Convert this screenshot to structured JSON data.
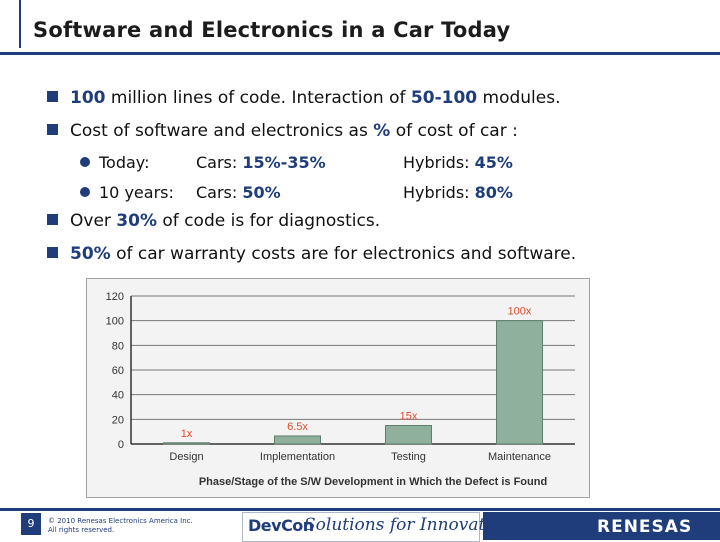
{
  "slide": {
    "title": "Software and Electronics in a Car Today",
    "bullets": [
      {
        "pre": "",
        "num": "100",
        "post": " million lines of code. Interaction of ",
        "num2": "50-100",
        "post2": " modules."
      },
      {
        "pre": "Cost of software and electronics as ",
        "num": "%",
        "post": " of cost of car :"
      },
      {
        "pre": "Over ",
        "num": "30%",
        "post": " of code is for diagnostics."
      },
      {
        "pre": "",
        "num": "50%",
        "post": " of car warranty costs are for electronics and software."
      }
    ],
    "sub_bullets": [
      {
        "label": "Today:",
        "cars_label": "Cars:",
        "cars_value": "15%-35%",
        "hybrids_label": "Hybrids:",
        "hybrids_value": "45%"
      },
      {
        "label": "10 years:",
        "cars_label": "Cars:",
        "cars_value": "50%",
        "hybrids_label": "Hybrids:",
        "hybrids_value": "80%"
      }
    ]
  },
  "chart_data": {
    "type": "bar",
    "categories": [
      "Design",
      "Implementation",
      "Testing",
      "Maintenance"
    ],
    "values": [
      1,
      6.5,
      15,
      100
    ],
    "data_labels": [
      "1x",
      "6.5x",
      "15x",
      "100x"
    ],
    "xlabel": "Phase/Stage of the S/W Development in Which the Defect is Found",
    "ylabel": "",
    "ylim": [
      0,
      120
    ],
    "yticks": [
      0,
      20,
      40,
      60,
      80,
      100,
      120
    ],
    "grid": true,
    "colors": {
      "bar": "#8fb09c",
      "label": "#e04a2a",
      "axis_text": "#333333"
    }
  },
  "footer": {
    "page_number": "9",
    "copyright_line1": "© 2010 Renesas Electronics America Inc.",
    "copyright_line2": "All rights reserved.",
    "devcon": "DevCon",
    "tagline": "Solutions for Innovation",
    "brand": "RENESAS"
  },
  "colors": {
    "accent": "#1f3d7a"
  }
}
